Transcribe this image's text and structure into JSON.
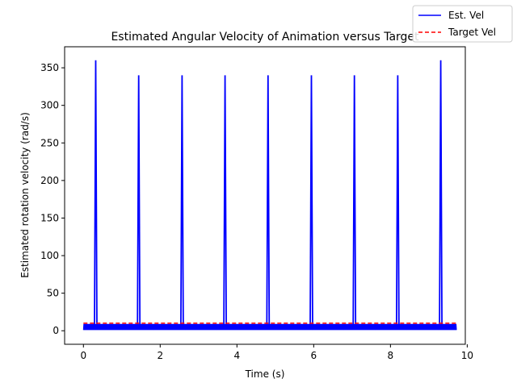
{
  "chart_data": {
    "type": "line",
    "title": "Estimated Angular Velocity of Animation versus Target",
    "xlabel": "Time (s)",
    "ylabel": "Estimated rotation velocity (rad/s)",
    "xlim": [
      -0.49,
      9.95
    ],
    "ylim": [
      -18,
      378
    ],
    "xticks": [
      0,
      2,
      4,
      6,
      8,
      10
    ],
    "yticks": [
      0,
      50,
      100,
      150,
      200,
      250,
      300,
      350
    ],
    "grid": false,
    "legend_position": "top-right",
    "series": [
      {
        "name": "Est. Vel",
        "color": "#0000ff",
        "style": "solid",
        "x_start": 0.0,
        "x_end": 9.72,
        "baseline_range": [
          0,
          10
        ],
        "spikes": [
          {
            "x": 0.32,
            "value": 360
          },
          {
            "x": 1.44,
            "value": 340
          },
          {
            "x": 2.57,
            "value": 340
          },
          {
            "x": 3.69,
            "value": 340
          },
          {
            "x": 4.81,
            "value": 340
          },
          {
            "x": 5.94,
            "value": 340
          },
          {
            "x": 7.06,
            "value": 340
          },
          {
            "x": 8.19,
            "value": 340
          },
          {
            "x": 9.31,
            "value": 360
          }
        ]
      },
      {
        "name": "Target Vel",
        "color": "#ff0000",
        "style": "dashed",
        "x": [
          0.0,
          9.72
        ],
        "values": [
          10,
          10
        ]
      }
    ]
  }
}
